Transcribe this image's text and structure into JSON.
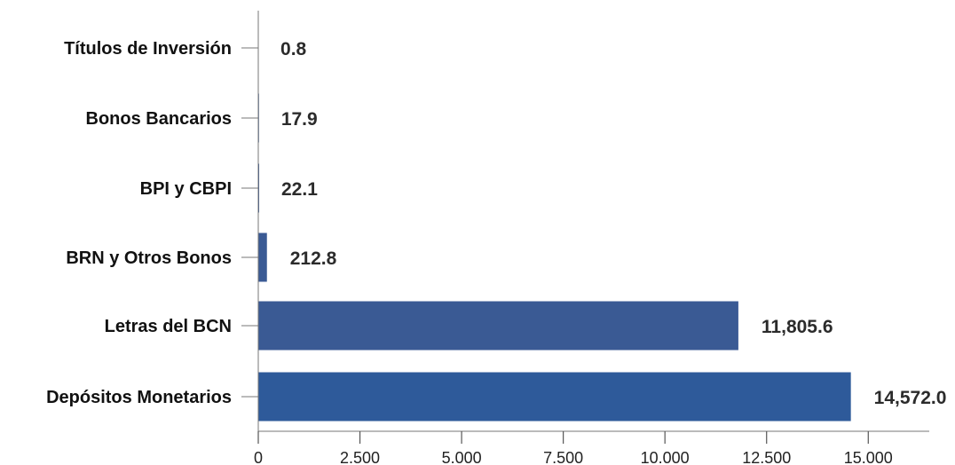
{
  "chart_data": {
    "type": "bar",
    "orientation": "horizontal",
    "categories": [
      "Títulos de Inversión",
      "Bonos Bancarios",
      "BPI y CBPI",
      "BRN y Otros Bonos",
      "Letras del BCN",
      "Depósitos Monetarios"
    ],
    "values": [
      0.8,
      17.9,
      22.1,
      212.8,
      11805.6,
      14572.0
    ],
    "value_labels": [
      "0.8",
      "17.9",
      "22.1",
      "212.8",
      "11,805.6",
      "14,572.0"
    ],
    "x_ticks": [
      0,
      2500,
      5000,
      7500,
      10000,
      12500,
      15000
    ],
    "x_tick_labels": [
      "0",
      "2.500",
      "5.000",
      "7.500",
      "10.000",
      "12.500",
      "15.000"
    ],
    "xlim": [
      0,
      16500
    ],
    "grid": false,
    "legend": "none",
    "bar_colors": [
      "#3a5a94",
      "#3a5a94",
      "#3a5a94",
      "#3a5a94",
      "#3a5a94",
      "#2e5a9a"
    ],
    "title": "",
    "xlabel": "",
    "ylabel": ""
  }
}
